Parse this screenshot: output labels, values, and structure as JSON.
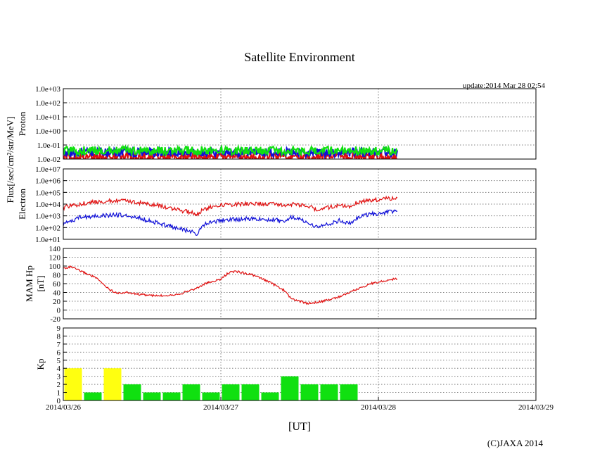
{
  "title": "Satellite Environment",
  "update": "update:2014 Mar 28 02:54",
  "copyright": "(C)JAXA 2014",
  "xlabel": "[UT]",
  "flux_ylabel": "Flux[/sec/cm²/str/MeV]",
  "x_ticks": [
    "2014/03/26",
    "2014/03/27",
    "2014/03/28",
    "2014/03/29"
  ],
  "colors": {
    "red": "#e01010",
    "blue": "#1010d8",
    "green": "#10e010",
    "yellow": "#ffff10",
    "grid": "#808080"
  },
  "chart_data": [
    {
      "type": "line",
      "id": "proton",
      "ylabel": "Proton",
      "yscale": "log",
      "ylim": [
        0.01,
        1000
      ],
      "y_ticks": [
        "1.0e-02",
        "1.0e-01",
        "1.0e+00",
        "1.0e+01",
        "1.0e+02",
        "1.0e+03"
      ],
      "xlim_days": [
        0,
        3
      ],
      "series": [
        {
          "name": "proton-red",
          "color": "red",
          "x": [
            0,
            0.5,
            1.0,
            1.5,
            2.12
          ],
          "values": [
            0.015,
            0.015,
            0.015,
            0.015,
            0.015
          ]
        },
        {
          "name": "proton-blue",
          "color": "blue",
          "x": [
            0,
            0.5,
            1.0,
            1.5,
            2.12
          ],
          "values": [
            0.03,
            0.03,
            0.03,
            0.03,
            0.03
          ]
        },
        {
          "name": "proton-green",
          "color": "green",
          "x": [
            0,
            0.5,
            1.0,
            1.5,
            2.12
          ],
          "values": [
            0.04,
            0.04,
            0.04,
            0.04,
            0.04
          ]
        }
      ]
    },
    {
      "type": "line",
      "id": "electron",
      "ylabel": "Electron",
      "yscale": "log",
      "ylim": [
        10,
        10000000
      ],
      "y_ticks": [
        "1.0e+01",
        "1.0e+02",
        "1.0e+03",
        "1.0e+04",
        "1.0e+05",
        "1.0e+06",
        "1.0e+07"
      ],
      "xlim_days": [
        0,
        3
      ],
      "series": [
        {
          "name": "electron-high",
          "color": "red",
          "x": [
            0,
            0.1,
            0.2,
            0.35,
            0.45,
            0.6,
            0.7,
            0.8,
            0.85,
            0.9,
            0.95,
            1.0,
            1.1,
            1.2,
            1.3,
            1.4,
            1.45,
            1.55,
            1.6,
            1.65,
            1.75,
            1.82,
            1.87,
            1.92,
            2.12
          ],
          "values": [
            5000,
            10000,
            15000,
            20000,
            15000,
            8000,
            4000,
            2000,
            1500,
            4000,
            6000,
            8000,
            10000,
            11000,
            10000,
            9000,
            10000,
            8000,
            3500,
            4000,
            8000,
            6000,
            15000,
            20000,
            35000
          ]
        },
        {
          "name": "electron-low",
          "color": "blue",
          "x": [
            0,
            0.1,
            0.2,
            0.35,
            0.45,
            0.6,
            0.7,
            0.8,
            0.85,
            0.9,
            0.95,
            1.0,
            1.1,
            1.2,
            1.3,
            1.4,
            1.45,
            1.55,
            1.6,
            1.65,
            1.75,
            1.82,
            1.87,
            1.92,
            2.12
          ],
          "values": [
            200,
            700,
            1000,
            1200,
            800,
            250,
            100,
            50,
            30,
            200,
            300,
            400,
            500,
            600,
            500,
            400,
            800,
            300,
            120,
            150,
            400,
            250,
            800,
            1200,
            2500
          ]
        }
      ]
    },
    {
      "type": "line",
      "id": "mam",
      "ylabel": "MAM Hp",
      "ylabel2": "[nT]",
      "yscale": "linear",
      "ylim": [
        -20,
        140
      ],
      "y_ticks": [
        "-20",
        "0",
        "20",
        "40",
        "60",
        "80",
        "100",
        "120",
        "140"
      ],
      "xlim_days": [
        0,
        3
      ],
      "series": [
        {
          "name": "hp",
          "color": "red",
          "x": [
            0,
            0.05,
            0.1,
            0.2,
            0.3,
            0.35,
            0.4,
            0.5,
            0.6,
            0.7,
            0.75,
            0.85,
            0.9,
            1.0,
            1.05,
            1.1,
            1.2,
            1.3,
            1.35,
            1.4,
            1.45,
            1.55,
            1.65,
            1.75,
            1.85,
            1.95,
            2.12
          ],
          "values": [
            95,
            98,
            90,
            75,
            45,
            38,
            40,
            35,
            32,
            35,
            38,
            50,
            60,
            70,
            85,
            88,
            80,
            65,
            55,
            45,
            25,
            15,
            20,
            30,
            45,
            60,
            72
          ]
        }
      ]
    },
    {
      "type": "bar",
      "id": "kp",
      "ylabel": "Kp",
      "ylim": [
        0,
        9
      ],
      "y_ticks": [
        "0",
        "1",
        "2",
        "3",
        "4",
        "5",
        "6",
        "7",
        "8",
        "9"
      ],
      "xlim_days": [
        0,
        3
      ],
      "bin_days": 0.125,
      "highlight_threshold": 4,
      "values": [
        4,
        1,
        4,
        2,
        1,
        1,
        2,
        1,
        2,
        2,
        1,
        3,
        2,
        2,
        2
      ]
    }
  ]
}
